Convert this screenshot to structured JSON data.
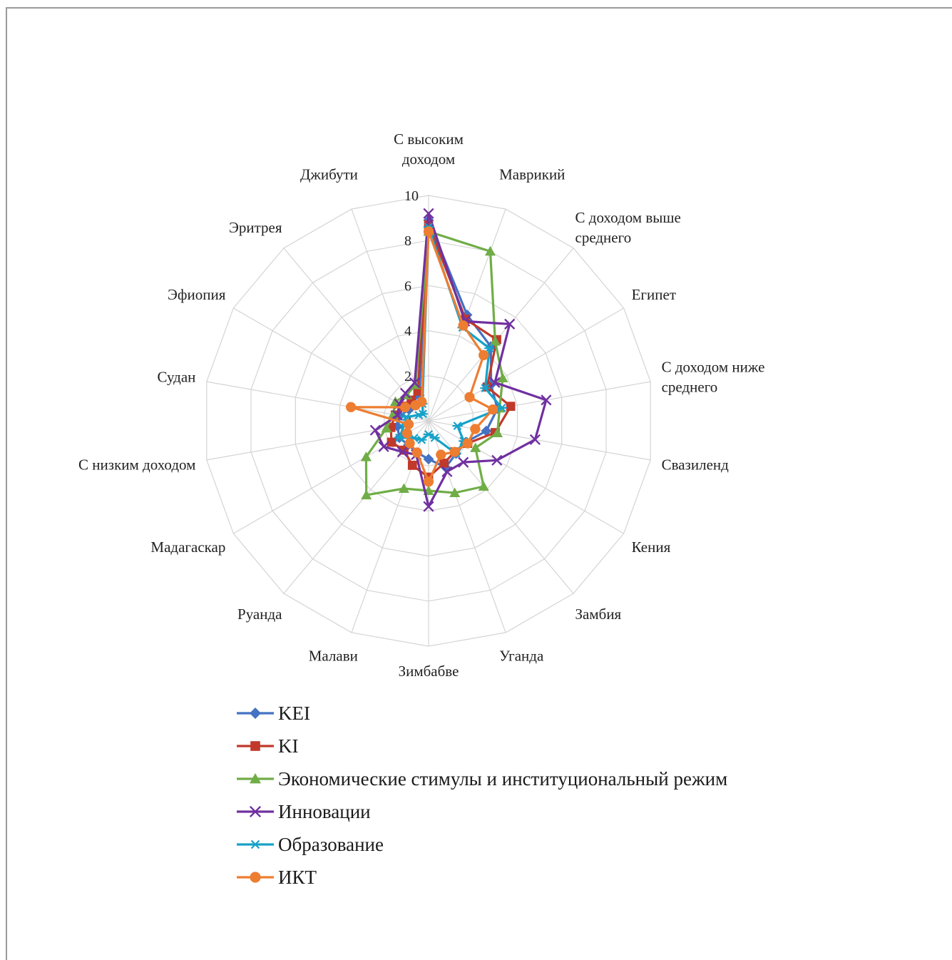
{
  "chart_data": {
    "type": "radar",
    "title": "",
    "categories": [
      "С высоким доходом",
      "Маврикий",
      "С доходом выше среднего",
      "Египет",
      "С доходом ниже среднего",
      "Свазиленд",
      "Кения",
      "Замбия",
      "Уганда",
      "Зимбабве",
      "Малави",
      "Руанда",
      "Мадагаскар",
      "С низким доходом",
      "Судан",
      "Эфиопия",
      "Эритрея",
      "Джибути"
    ],
    "category_label_lines": [
      [
        "С высоким",
        "доходом"
      ],
      [
        "Маврикий"
      ],
      [
        "С доходом выше",
        "среднего"
      ],
      [
        "Египет"
      ],
      [
        "С доходом ниже",
        "среднего"
      ],
      [
        "Свазиленд"
      ],
      [
        "Кения"
      ],
      [
        "Замбия"
      ],
      [
        "Уганда"
      ],
      [
        "Зимбабве"
      ],
      [
        "Малави"
      ],
      [
        "Руанда"
      ],
      [
        "Мадагаскар"
      ],
      [
        "С низким доходом"
      ],
      [
        "Судан"
      ],
      [
        "Эфиопия"
      ],
      [
        "Эритрея"
      ],
      [
        "Джибути"
      ]
    ],
    "rlim": [
      0,
      10
    ],
    "ticks": [
      "0",
      "2",
      "4",
      "6",
      "8",
      "10"
    ],
    "grid": true,
    "legend_position": "bottom",
    "series": [
      {
        "name": "KEI",
        "color": "#4472c4",
        "marker": "diamond",
        "values": [
          8.9,
          5.0,
          4.3,
          3.2,
          3.1,
          2.6,
          1.9,
          1.9,
          2.2,
          1.7,
          1.5,
          1.4,
          1.5,
          1.4,
          1.3,
          1.0,
          1.1,
          1.2
        ]
      },
      {
        "name": "KI",
        "color": "#c0392b",
        "marker": "square",
        "values": [
          8.7,
          4.8,
          4.7,
          3.0,
          3.7,
          3.0,
          2.0,
          1.8,
          2.0,
          2.5,
          2.1,
          1.7,
          1.9,
          1.7,
          1.5,
          1.3,
          1.2,
          1.4
        ]
      },
      {
        "name": "Экономические стимулы и институциональный режим",
        "color": "#70ad47",
        "marker": "triangle",
        "values": [
          8.4,
          8.0,
          4.6,
          3.8,
          3.2,
          3.1,
          2.4,
          3.8,
          3.4,
          3.1,
          3.2,
          4.3,
          3.2,
          1.9,
          1.6,
          1.7,
          1.5,
          1.7
        ]
      },
      {
        "name": "Инновации",
        "color": "#7030a0",
        "marker": "x",
        "values": [
          9.2,
          4.7,
          5.6,
          3.4,
          5.3,
          4.8,
          3.5,
          2.4,
          2.4,
          3.8,
          1.6,
          1.8,
          2.3,
          2.4,
          1.4,
          1.5,
          1.6,
          1.8
        ]
      },
      {
        "name": "Образование",
        "color": "#17a2c8",
        "marker": "asterisk",
        "values": [
          8.6,
          4.4,
          4.2,
          2.9,
          3.3,
          1.3,
          1.8,
          1.9,
          0.8,
          0.6,
          0.9,
          1.0,
          1.5,
          1.1,
          1.0,
          0.5,
          0.4,
          0.8
        ]
      },
      {
        "name": "ИКТ",
        "color": "#ed7d31",
        "marker": "circle",
        "values": [
          8.4,
          4.5,
          3.8,
          2.1,
          2.9,
          2.1,
          2.0,
          1.8,
          1.6,
          2.7,
          1.5,
          1.3,
          1.1,
          0.9,
          3.5,
          1.2,
          0.9,
          0.9
        ]
      }
    ]
  }
}
